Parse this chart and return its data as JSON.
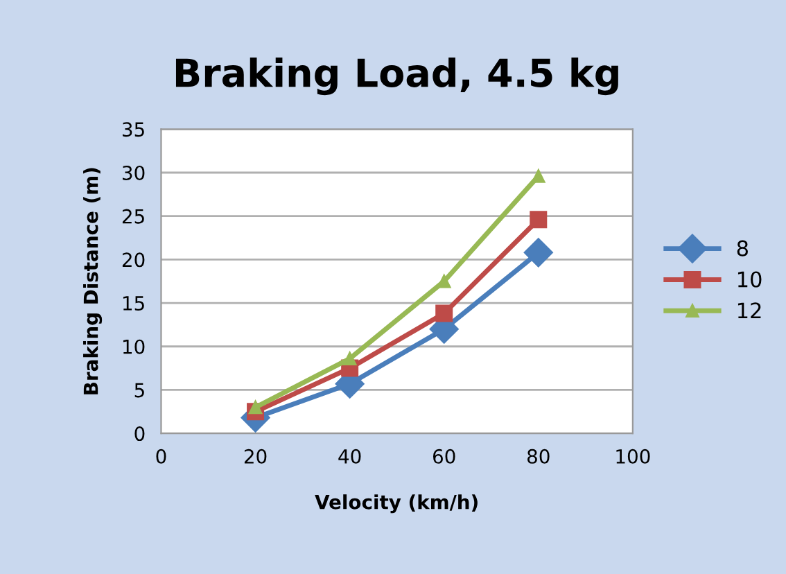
{
  "chart_data": {
    "type": "line",
    "title": "Braking Load, 4.5 kg",
    "xlabel": "Velocity (km/h)",
    "ylabel": "Braking Distance (m)",
    "x": [
      20,
      40,
      60,
      80
    ],
    "series": [
      {
        "name": "8",
        "color": "#4a7ebb",
        "values": [
          1.8,
          5.7,
          12,
          20.8
        ],
        "marker": "diamond"
      },
      {
        "name": "10",
        "color": "#be4b48",
        "values": [
          2.5,
          7.5,
          13.8,
          24.6
        ],
        "marker": "square"
      },
      {
        "name": "12",
        "color": "#98b954",
        "values": [
          3,
          8.6,
          17.5,
          29.6
        ],
        "marker": "triangle"
      }
    ],
    "xlim": [
      0,
      100
    ],
    "xticks": [
      0,
      20,
      40,
      60,
      80,
      100
    ],
    "ylim": [
      0,
      35
    ],
    "yticks": [
      0,
      5,
      10,
      15,
      20,
      25,
      30,
      35
    ],
    "grid": "y",
    "legend": "right",
    "line_style": "solid"
  }
}
